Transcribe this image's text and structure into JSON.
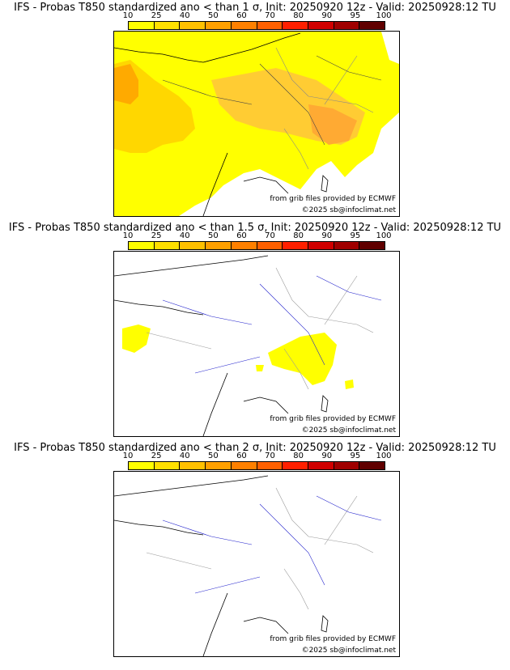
{
  "colorbar": {
    "ticks": [
      "10",
      "25",
      "40",
      "50",
      "60",
      "70",
      "80",
      "90",
      "95",
      "100"
    ],
    "colors": [
      "#ffff00",
      "#ffe000",
      "#ffc000",
      "#ffa000",
      "#ff8000",
      "#ff6000",
      "#ff2000",
      "#d00000",
      "#a00000",
      "#600000"
    ]
  },
  "panels": [
    {
      "title": "IFS - Probas T850  standardized ano < than 1 σ, Init: 20250920 12z - Valid: 20250928:12 TU",
      "credit_grib": "from grib files provided by ECMWF",
      "credit_copyright": "©2025 sb@infoclimat.net"
    },
    {
      "title": "IFS - Probas T850  standardized ano < than 1.5 σ, Init: 20250920 12z - Valid: 20250928:12 TU",
      "credit_grib": "from grib files provided by ECMWF",
      "credit_copyright": "©2025 sb@infoclimat.net"
    },
    {
      "title": "IFS - Probas T850  standardized ano < than 2 σ, Init: 20250920 12z - Valid: 20250928:12 TU",
      "credit_grib": "from grib files provided by ECMWF",
      "credit_copyright": "©2025 sb@infoclimat.net"
    }
  ],
  "legend_colors": {
    "coast": "#000000",
    "borders": "#999999",
    "rivers": "#2222cc",
    "yellow": "#ffff00",
    "orange": "#ffd000",
    "deep": "#ffa500"
  }
}
